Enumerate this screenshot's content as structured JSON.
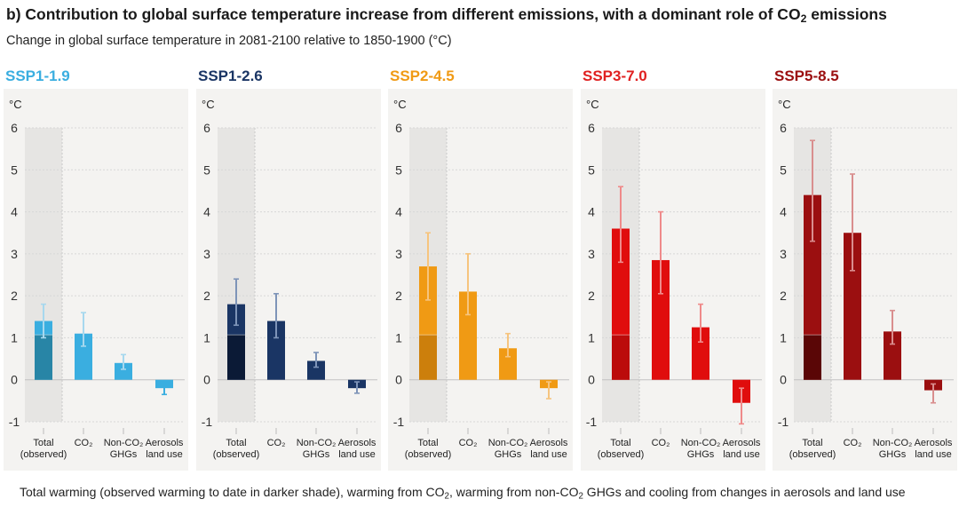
{
  "title_parts": {
    "before": "b) Contribution to global surface temperature increase from different emissions, with a dominant role of CO",
    "sub": "2",
    "after": " emissions"
  },
  "subtitle": "Change in global surface temperature in 2081-2100 relative to 1850-1900 (°C)",
  "footer_parts": {
    "p1": "Total warming (observed warming to date in darker shade), warming from CO",
    "s1": "2",
    "p2": ", warming from non-CO",
    "s2": "2",
    "p3": " GHGs and cooling from changes in aerosols and land use"
  },
  "chart_data": {
    "type": "bar",
    "unit_label": "°C",
    "ylim": [
      -1,
      6
    ],
    "yticks": [
      "6",
      "5",
      "4",
      "3",
      "2",
      "1",
      "0",
      "-1"
    ],
    "categories": [
      {
        "line1": "Total",
        "line2": "(observed)"
      },
      {
        "line1": "CO₂",
        "line2": ""
      },
      {
        "line1": "Non-CO₂",
        "line2": "GHGs"
      },
      {
        "line1": "Aerosols",
        "line2": "land use"
      }
    ],
    "observed_warming": 1.07,
    "panels": [
      {
        "name": "SSP1-1.9",
        "colors": {
          "title": "#3aaee0",
          "bar": "#3aaee0",
          "observed": "#2885a6",
          "error": "#a7d8ee",
          "error_neg": "#3aaee0"
        },
        "bars": [
          {
            "value": 1.4,
            "err_low": 1.0,
            "err_high": 1.8
          },
          {
            "value": 1.1,
            "err_low": 0.8,
            "err_high": 1.6
          },
          {
            "value": 0.4,
            "err_low": 0.25,
            "err_high": 0.6
          },
          {
            "value": -0.2,
            "err_low": -0.35,
            "err_high": -0.05
          }
        ]
      },
      {
        "name": "SSP1-2.6",
        "colors": {
          "title": "#1a3564",
          "bar": "#1a3564",
          "observed": "#0b1a36",
          "error": "#7e94b8",
          "error_neg": "#7e94b8"
        },
        "bars": [
          {
            "value": 1.8,
            "err_low": 1.3,
            "err_high": 2.4
          },
          {
            "value": 1.4,
            "err_low": 1.0,
            "err_high": 2.05
          },
          {
            "value": 0.45,
            "err_low": 0.3,
            "err_high": 0.65
          },
          {
            "value": -0.2,
            "err_low": -0.32,
            "err_high": -0.05
          }
        ]
      },
      {
        "name": "SSP2-4.5",
        "colors": {
          "title": "#f09a14",
          "bar": "#f09a14",
          "observed": "#cc7f0c",
          "error": "#f6c47e",
          "error_neg": "#f6c47e"
        },
        "bars": [
          {
            "value": 2.7,
            "err_low": 1.9,
            "err_high": 3.5
          },
          {
            "value": 2.1,
            "err_low": 1.55,
            "err_high": 3.0
          },
          {
            "value": 0.75,
            "err_low": 0.55,
            "err_high": 1.1
          },
          {
            "value": -0.2,
            "err_low": -0.45,
            "err_high": -0.05
          }
        ]
      },
      {
        "name": "SSP3-7.0",
        "colors": {
          "title": "#e02020",
          "bar": "#e00d0d",
          "observed": "#bb0b0b",
          "error": "#ef8a8a",
          "error_neg": "#ef8a8a"
        },
        "bars": [
          {
            "value": 3.6,
            "err_low": 2.8,
            "err_high": 4.6
          },
          {
            "value": 2.85,
            "err_low": 2.05,
            "err_high": 4.0
          },
          {
            "value": 1.25,
            "err_low": 0.9,
            "err_high": 1.8
          },
          {
            "value": -0.55,
            "err_low": -1.05,
            "err_high": -0.2
          }
        ]
      },
      {
        "name": "SSP5-8.5",
        "colors": {
          "title": "#9b0f10",
          "bar": "#9b0f10",
          "observed": "#5a0606",
          "error": "#d98e8e",
          "error_neg": "#d98e8e"
        },
        "bars": [
          {
            "value": 4.4,
            "err_low": 3.3,
            "err_high": 5.7
          },
          {
            "value": 3.5,
            "err_low": 2.6,
            "err_high": 4.9
          },
          {
            "value": 1.15,
            "err_low": 0.85,
            "err_high": 1.65
          },
          {
            "value": -0.25,
            "err_low": -0.55,
            "err_high": -0.1
          }
        ]
      }
    ]
  }
}
